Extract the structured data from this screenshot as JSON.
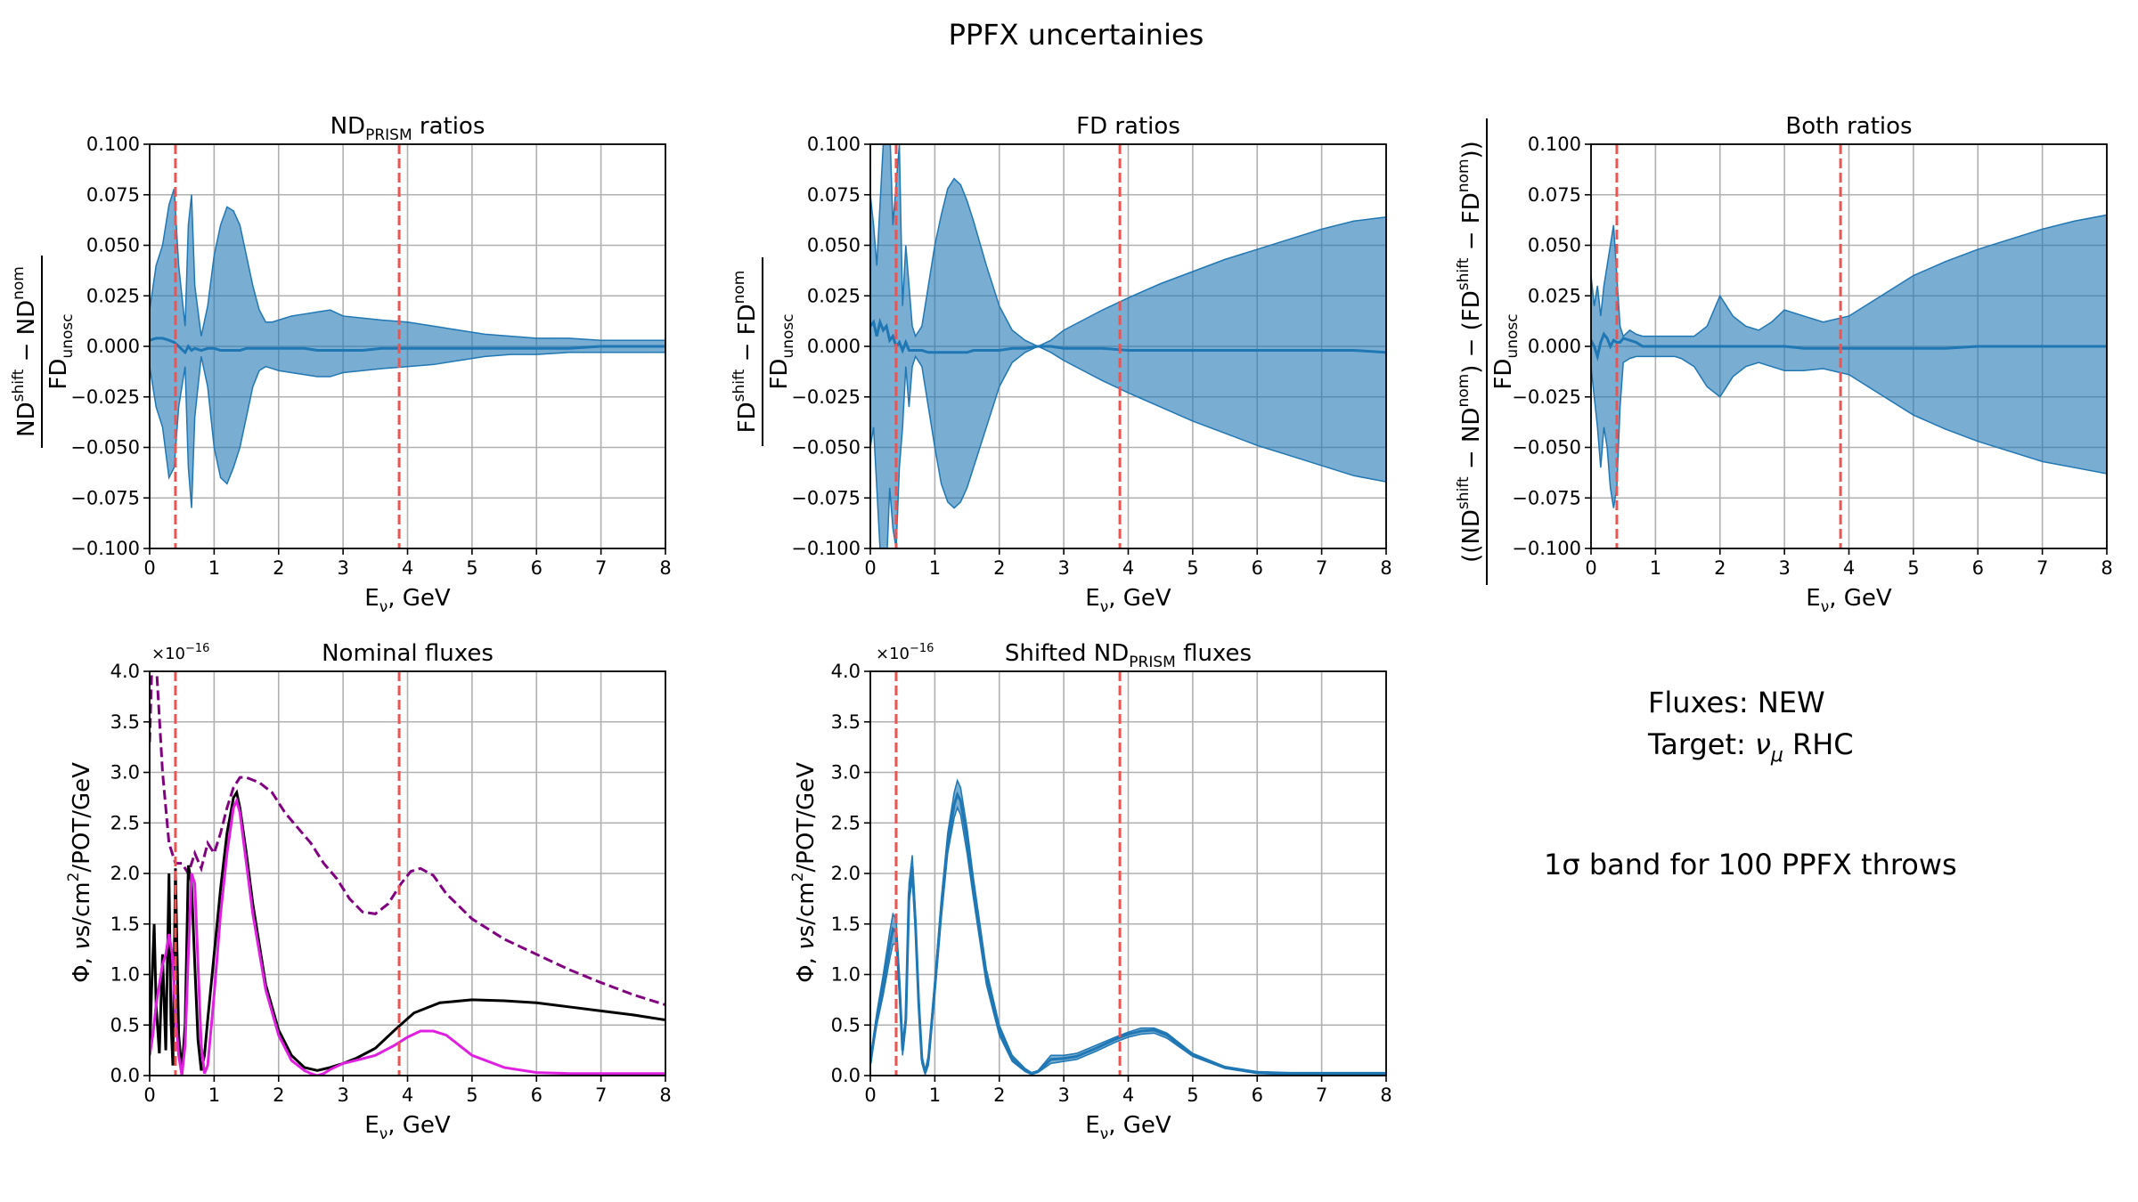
{
  "suptitle": "PPFX uncertainies",
  "colors": {
    "band": "#1f77b4",
    "central": "#1f77b4",
    "vline": "#ef5350",
    "nd_flux": "#000000",
    "fd_osc": "#e020e0",
    "fd_unosc": "#800080",
    "grid": "#b0b0b0"
  },
  "info": {
    "fluxes": "Fluxes:  NEW",
    "target_prefix": "Target: ",
    "target_nu": "ν",
    "target_mu": "μ",
    "target_suffix": " RHC",
    "band_sigma": "1σ",
    "band_text": " band for 100 PPFX throws"
  },
  "xlabel_main": "E",
  "xlabel_sub": "ν",
  "xlabel_suffix": ", GeV",
  "ratio_ylabels": {
    "nd_num_a": "ND",
    "nd_num_a_sup": "shift",
    "nd_minus": " − ",
    "nd_num_b": "ND",
    "nd_num_b_sup": "nom",
    "fd_num_a": "FD",
    "fd_num_a_sup": "shift",
    "fd_num_b": "FD",
    "fd_num_b_sup": "nom",
    "both_num": "((ND",
    "both_num_sup1": "shift",
    "both_mid1": " − ND",
    "both_num_sup2": "nom",
    "both_mid2": ") − (FD",
    "both_num_sup3": "shift",
    "both_mid3": " − FD",
    "both_num_sup4": "nom",
    "both_end": "))",
    "den": "FD",
    "den_sub": "unosc"
  },
  "flux_ylabel": {
    "pre": "Φ, ",
    "nu": "ν",
    "mid": "s/cm",
    "sq": "2",
    "post": "/POT/GeV"
  },
  "flux_offset": {
    "base": "×10",
    "exp": "−16"
  },
  "chart_data": [
    {
      "id": "nd_ratio",
      "type": "area",
      "title": "ND",
      "title_sub": "PRISM",
      "title_post": " ratios",
      "xlim": [
        0,
        8
      ],
      "ylim": [
        -0.1,
        0.1
      ],
      "xticks": [
        "0",
        "1",
        "2",
        "3",
        "4",
        "5",
        "6",
        "7",
        "8"
      ],
      "yticks": [
        "−0.100",
        "−0.075",
        "−0.050",
        "−0.025",
        "0.000",
        "0.025",
        "0.050",
        "0.075",
        "0.100"
      ],
      "grid": true,
      "vlines": [
        0.4,
        3.87
      ],
      "x": [
        0,
        0.1,
        0.2,
        0.3,
        0.38,
        0.45,
        0.55,
        0.6,
        0.65,
        0.7,
        0.8,
        0.9,
        1.0,
        1.1,
        1.2,
        1.3,
        1.4,
        1.5,
        1.6,
        1.7,
        1.8,
        1.9,
        2.0,
        2.2,
        2.4,
        2.6,
        2.8,
        3.0,
        3.3,
        3.6,
        4.0,
        4.4,
        4.8,
        5.2,
        5.6,
        6.0,
        6.5,
        7.0,
        7.5,
        8.0
      ],
      "upper": [
        0.018,
        0.04,
        0.05,
        0.07,
        0.078,
        0.04,
        0.01,
        0.06,
        0.075,
        0.03,
        0.005,
        0.02,
        0.045,
        0.06,
        0.069,
        0.067,
        0.06,
        0.045,
        0.03,
        0.018,
        0.012,
        0.012,
        0.013,
        0.015,
        0.016,
        0.017,
        0.018,
        0.015,
        0.014,
        0.013,
        0.012,
        0.01,
        0.008,
        0.006,
        0.005,
        0.004,
        0.004,
        0.003,
        0.003,
        0.003
      ],
      "lower": [
        -0.01,
        -0.03,
        -0.04,
        -0.065,
        -0.06,
        -0.03,
        -0.01,
        -0.06,
        -0.08,
        -0.035,
        -0.005,
        -0.02,
        -0.05,
        -0.065,
        -0.068,
        -0.06,
        -0.05,
        -0.035,
        -0.02,
        -0.012,
        -0.01,
        -0.011,
        -0.012,
        -0.013,
        -0.014,
        -0.015,
        -0.015,
        -0.013,
        -0.012,
        -0.011,
        -0.01,
        -0.009,
        -0.007,
        -0.005,
        -0.004,
        -0.004,
        -0.003,
        -0.003,
        -0.003,
        -0.003
      ],
      "central": [
        0.003,
        0.004,
        0.004,
        0.003,
        0.002,
        0.0,
        -0.003,
        0.0,
        -0.002,
        -0.001,
        -0.002,
        -0.001,
        -0.001,
        -0.002,
        -0.002,
        -0.002,
        -0.002,
        -0.001,
        -0.001,
        -0.001,
        -0.001,
        -0.001,
        -0.001,
        -0.001,
        -0.001,
        -0.002,
        -0.002,
        -0.002,
        -0.002,
        -0.001,
        -0.001,
        -0.001,
        -0.001,
        -0.001,
        -0.001,
        -0.001,
        -0.001,
        0.0,
        0.0,
        0.0
      ]
    },
    {
      "id": "fd_ratio",
      "type": "area",
      "title": "FD ratios",
      "xlim": [
        0,
        8
      ],
      "ylim": [
        -0.1,
        0.1
      ],
      "xticks": [
        "0",
        "1",
        "2",
        "3",
        "4",
        "5",
        "6",
        "7",
        "8"
      ],
      "yticks": [
        "−0.100",
        "−0.075",
        "−0.050",
        "−0.025",
        "0.000",
        "0.025",
        "0.050",
        "0.075",
        "0.100"
      ],
      "grid": true,
      "vlines": [
        0.4,
        3.87
      ],
      "x": [
        0,
        0.05,
        0.1,
        0.15,
        0.2,
        0.25,
        0.3,
        0.35,
        0.4,
        0.45,
        0.5,
        0.55,
        0.6,
        0.65,
        0.7,
        0.8,
        0.9,
        1.0,
        1.1,
        1.2,
        1.3,
        1.4,
        1.5,
        1.6,
        1.8,
        2.0,
        2.2,
        2.4,
        2.6,
        2.8,
        3.0,
        3.3,
        3.6,
        4.0,
        4.5,
        5.0,
        5.5,
        6.0,
        6.5,
        7.0,
        7.5,
        8.0
      ],
      "upper": [
        0.075,
        0.06,
        0.04,
        0.07,
        0.1,
        0.11,
        0.11,
        0.06,
        0.08,
        0.1,
        0.02,
        0.05,
        0.03,
        0.01,
        0.005,
        0.01,
        0.03,
        0.05,
        0.065,
        0.078,
        0.083,
        0.08,
        0.072,
        0.062,
        0.04,
        0.02,
        0.008,
        0.003,
        0.0,
        0.003,
        0.008,
        0.013,
        0.018,
        0.024,
        0.031,
        0.037,
        0.043,
        0.048,
        0.053,
        0.058,
        0.062,
        0.064
      ],
      "lower": [
        -0.05,
        -0.04,
        -0.07,
        -0.1,
        -0.11,
        -0.11,
        -0.07,
        -0.09,
        -0.1,
        -0.06,
        -0.04,
        -0.01,
        -0.03,
        -0.01,
        -0.005,
        -0.01,
        -0.03,
        -0.05,
        -0.068,
        -0.077,
        -0.08,
        -0.077,
        -0.07,
        -0.06,
        -0.04,
        -0.02,
        -0.008,
        -0.003,
        0.0,
        -0.003,
        -0.007,
        -0.012,
        -0.017,
        -0.023,
        -0.03,
        -0.037,
        -0.043,
        -0.049,
        -0.054,
        -0.059,
        -0.064,
        -0.067
      ],
      "central": [
        0.01,
        0.012,
        0.005,
        0.012,
        0.008,
        0.01,
        0.003,
        0.005,
        0.0,
        0.002,
        -0.002,
        0.002,
        -0.002,
        -0.002,
        -0.002,
        -0.002,
        -0.003,
        -0.003,
        -0.003,
        -0.003,
        -0.003,
        -0.003,
        -0.003,
        -0.002,
        -0.002,
        -0.002,
        -0.001,
        -0.001,
        0.0,
        0.0,
        -0.001,
        -0.001,
        -0.001,
        -0.002,
        -0.002,
        -0.002,
        -0.002,
        -0.002,
        -0.002,
        -0.002,
        -0.002,
        -0.003
      ]
    },
    {
      "id": "both_ratio",
      "type": "area",
      "title": "Both ratios",
      "xlim": [
        0,
        8
      ],
      "ylim": [
        -0.1,
        0.1
      ],
      "xticks": [
        "0",
        "1",
        "2",
        "3",
        "4",
        "5",
        "6",
        "7",
        "8"
      ],
      "yticks": [
        "−0.100",
        "−0.075",
        "−0.050",
        "−0.025",
        "0.000",
        "0.025",
        "0.050",
        "0.075",
        "0.100"
      ],
      "grid": true,
      "vlines": [
        0.4,
        3.87
      ],
      "x": [
        0,
        0.05,
        0.1,
        0.15,
        0.2,
        0.25,
        0.3,
        0.35,
        0.4,
        0.45,
        0.5,
        0.6,
        0.7,
        0.8,
        0.9,
        1.0,
        1.1,
        1.2,
        1.3,
        1.4,
        1.6,
        1.8,
        2.0,
        2.2,
        2.4,
        2.6,
        2.8,
        3.0,
        3.3,
        3.6,
        4.0,
        4.5,
        5.0,
        5.5,
        6.0,
        6.5,
        7.0,
        7.5,
        8.0
      ],
      "upper": [
        0.035,
        0.02,
        0.03,
        0.015,
        0.03,
        0.04,
        0.05,
        0.06,
        0.035,
        0.01,
        0.005,
        0.008,
        0.006,
        0.005,
        0.005,
        0.005,
        0.005,
        0.005,
        0.005,
        0.005,
        0.005,
        0.01,
        0.025,
        0.015,
        0.01,
        0.008,
        0.012,
        0.018,
        0.015,
        0.012,
        0.015,
        0.025,
        0.035,
        0.042,
        0.048,
        0.053,
        0.058,
        0.062,
        0.065
      ],
      "lower": [
        -0.01,
        -0.025,
        -0.04,
        -0.06,
        -0.04,
        -0.05,
        -0.07,
        -0.08,
        -0.07,
        -0.03,
        -0.008,
        -0.006,
        -0.005,
        -0.005,
        -0.005,
        -0.005,
        -0.005,
        -0.005,
        -0.005,
        -0.006,
        -0.01,
        -0.02,
        -0.025,
        -0.015,
        -0.01,
        -0.008,
        -0.01,
        -0.012,
        -0.012,
        -0.011,
        -0.014,
        -0.024,
        -0.034,
        -0.041,
        -0.047,
        -0.052,
        -0.057,
        -0.06,
        -0.063
      ],
      "central": [
        0.003,
        0.0,
        -0.005,
        0.002,
        0.006,
        0.004,
        0.0,
        0.003,
        0.002,
        0.002,
        0.004,
        0.003,
        0.002,
        0.0,
        0.0,
        0.0,
        0.0,
        0.0,
        0.0,
        0.0,
        0.0,
        0.0,
        0.0,
        0.0,
        0.0,
        0.0,
        0.0,
        0.0,
        -0.001,
        -0.001,
        -0.001,
        -0.001,
        -0.001,
        -0.001,
        0.0,
        0.0,
        0.0,
        0.0,
        0.0
      ]
    },
    {
      "id": "nominal_fluxes",
      "type": "line",
      "title": "Nominal fluxes",
      "xlim": [
        0,
        8
      ],
      "ylim": [
        0,
        4.0
      ],
      "xticks": [
        "0",
        "1",
        "2",
        "3",
        "4",
        "5",
        "6",
        "7",
        "8"
      ],
      "yticks": [
        "0.0",
        "0.5",
        "1.0",
        "1.5",
        "2.0",
        "2.5",
        "3.0",
        "3.5",
        "4.0"
      ],
      "grid": true,
      "vlines": [
        0.4,
        3.87
      ],
      "series": [
        {
          "style": "dashed",
          "color": "#800080",
          "x": [
            0.0,
            0.05,
            0.1,
            0.2,
            0.3,
            0.4,
            0.5,
            0.6,
            0.7,
            0.8,
            0.9,
            1.0,
            1.1,
            1.2,
            1.3,
            1.4,
            1.5,
            1.7,
            1.9,
            2.1,
            2.3,
            2.5,
            2.7,
            2.9,
            3.1,
            3.3,
            3.5,
            3.7,
            3.9,
            4.05,
            4.2,
            4.4,
            4.6,
            5.0,
            5.5,
            6.0,
            6.5,
            7.0,
            7.5,
            8.0
          ],
          "y": [
            3.3,
            4.4,
            4.1,
            3.0,
            2.3,
            2.1,
            2.1,
            2.0,
            2.2,
            2.05,
            2.3,
            2.2,
            2.4,
            2.65,
            2.85,
            2.95,
            2.95,
            2.9,
            2.8,
            2.6,
            2.45,
            2.3,
            2.1,
            1.95,
            1.75,
            1.62,
            1.6,
            1.7,
            1.9,
            2.02,
            2.05,
            1.98,
            1.8,
            1.55,
            1.35,
            1.2,
            1.05,
            0.92,
            0.8,
            0.7
          ]
        },
        {
          "style": "solid",
          "color": "#000000",
          "x": [
            0.0,
            0.03,
            0.07,
            0.1,
            0.15,
            0.2,
            0.25,
            0.3,
            0.33,
            0.36,
            0.4,
            0.45,
            0.5,
            0.55,
            0.6,
            0.65,
            0.7,
            0.75,
            0.8,
            0.85,
            0.9,
            1.0,
            1.1,
            1.2,
            1.3,
            1.35,
            1.4,
            1.5,
            1.6,
            1.8,
            2.0,
            2.2,
            2.4,
            2.6,
            2.8,
            3.0,
            3.2,
            3.5,
            3.8,
            4.1,
            4.5,
            5.0,
            5.5,
            6.0,
            6.5,
            7.0,
            7.5,
            8.0
          ],
          "y": [
            0.2,
            0.85,
            1.5,
            0.7,
            0.22,
            1.2,
            0.25,
            2.0,
            0.55,
            0.1,
            2.05,
            0.4,
            0.05,
            0.5,
            2.08,
            1.9,
            1.1,
            0.35,
            0.05,
            0.2,
            0.55,
            1.2,
            1.85,
            2.4,
            2.75,
            2.8,
            2.65,
            2.2,
            1.7,
            0.9,
            0.45,
            0.2,
            0.08,
            0.05,
            0.08,
            0.12,
            0.17,
            0.27,
            0.45,
            0.62,
            0.72,
            0.75,
            0.74,
            0.72,
            0.68,
            0.64,
            0.6,
            0.55
          ]
        },
        {
          "style": "solid",
          "color": "#e020e0",
          "x": [
            0.0,
            0.05,
            0.1,
            0.15,
            0.2,
            0.25,
            0.3,
            0.35,
            0.4,
            0.45,
            0.5,
            0.55,
            0.6,
            0.65,
            0.7,
            0.75,
            0.8,
            0.85,
            0.9,
            1.0,
            1.1,
            1.2,
            1.3,
            1.35,
            1.4,
            1.5,
            1.6,
            1.8,
            2.0,
            2.2,
            2.4,
            2.5,
            2.6,
            2.7,
            2.8,
            3.0,
            3.2,
            3.5,
            3.8,
            4.0,
            4.2,
            4.4,
            4.6,
            4.8,
            5.0,
            5.5,
            6.0,
            6.5,
            7.0,
            7.5,
            8.0
          ],
          "y": [
            0.2,
            0.4,
            0.7,
            0.9,
            1.1,
            1.2,
            1.4,
            1.2,
            0.6,
            0.2,
            0.0,
            0.3,
            1.2,
            2.0,
            1.9,
            1.1,
            0.3,
            0.02,
            0.1,
            0.8,
            1.6,
            2.2,
            2.65,
            2.72,
            2.6,
            2.1,
            1.6,
            0.85,
            0.4,
            0.15,
            0.05,
            0.02,
            0.0,
            0.02,
            0.06,
            0.12,
            0.15,
            0.2,
            0.3,
            0.38,
            0.44,
            0.44,
            0.4,
            0.3,
            0.2,
            0.08,
            0.03,
            0.02,
            0.02,
            0.02,
            0.02
          ]
        }
      ]
    },
    {
      "id": "shifted_fluxes",
      "type": "area",
      "title": "Shifted ND",
      "title_sub": "PRISM",
      "title_post": " fluxes",
      "xlim": [
        0,
        8
      ],
      "ylim": [
        0,
        4.0
      ],
      "xticks": [
        "0",
        "1",
        "2",
        "3",
        "4",
        "5",
        "6",
        "7",
        "8"
      ],
      "yticks": [
        "0.0",
        "0.5",
        "1.0",
        "1.5",
        "2.0",
        "2.5",
        "3.0",
        "3.5",
        "4.0"
      ],
      "grid": true,
      "vlines": [
        0.4,
        3.87
      ],
      "x": [
        0.0,
        0.05,
        0.1,
        0.2,
        0.3,
        0.35,
        0.4,
        0.45,
        0.5,
        0.55,
        0.6,
        0.65,
        0.7,
        0.75,
        0.8,
        0.85,
        0.9,
        1.0,
        1.1,
        1.2,
        1.3,
        1.35,
        1.4,
        1.5,
        1.6,
        1.8,
        2.0,
        2.2,
        2.4,
        2.5,
        2.6,
        2.8,
        3.0,
        3.2,
        3.5,
        3.8,
        4.0,
        4.2,
        4.4,
        4.6,
        4.8,
        5.0,
        5.5,
        6.0,
        6.5,
        7.0,
        7.5,
        8.0
      ],
      "upper": [
        0.15,
        0.4,
        0.62,
        1.0,
        1.42,
        1.6,
        1.55,
        1.0,
        0.3,
        0.6,
        1.9,
        2.18,
        1.6,
        0.8,
        0.2,
        0.05,
        0.2,
        0.95,
        1.75,
        2.4,
        2.8,
        2.92,
        2.85,
        2.45,
        1.95,
        1.05,
        0.5,
        0.2,
        0.07,
        0.03,
        0.05,
        0.2,
        0.2,
        0.22,
        0.3,
        0.38,
        0.43,
        0.47,
        0.47,
        0.42,
        0.32,
        0.22,
        0.09,
        0.04,
        0.03,
        0.03,
        0.03,
        0.03
      ],
      "lower": [
        0.1,
        0.3,
        0.5,
        0.8,
        1.15,
        1.3,
        1.3,
        0.8,
        0.2,
        0.5,
        1.7,
        1.95,
        1.4,
        0.65,
        0.12,
        0.01,
        0.1,
        0.8,
        1.55,
        2.2,
        2.55,
        2.65,
        2.58,
        2.2,
        1.75,
        0.9,
        0.4,
        0.14,
        0.04,
        0.01,
        0.03,
        0.12,
        0.14,
        0.16,
        0.24,
        0.33,
        0.38,
        0.41,
        0.42,
        0.37,
        0.28,
        0.19,
        0.07,
        0.02,
        0.01,
        0.01,
        0.01,
        0.01
      ],
      "central": [
        0.12,
        0.35,
        0.56,
        0.9,
        1.28,
        1.45,
        1.42,
        0.9,
        0.25,
        0.55,
        1.8,
        2.07,
        1.5,
        0.72,
        0.16,
        0.03,
        0.15,
        0.87,
        1.65,
        2.3,
        2.68,
        2.78,
        2.72,
        2.33,
        1.85,
        0.98,
        0.45,
        0.17,
        0.05,
        0.02,
        0.04,
        0.16,
        0.17,
        0.19,
        0.27,
        0.36,
        0.41,
        0.44,
        0.45,
        0.4,
        0.3,
        0.2,
        0.08,
        0.03,
        0.02,
        0.02,
        0.02,
        0.02
      ]
    }
  ]
}
